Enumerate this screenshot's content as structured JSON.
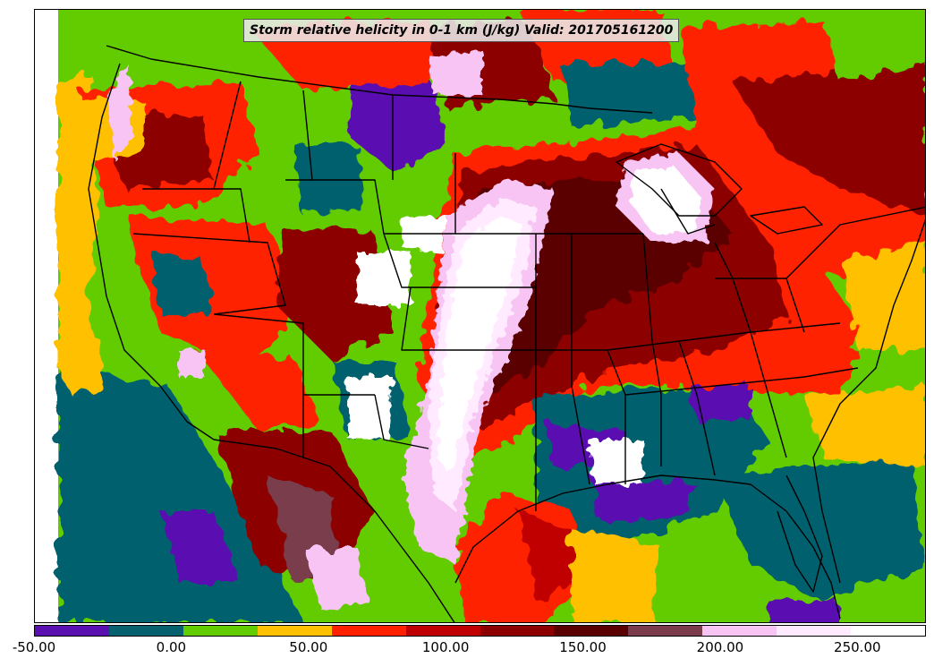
{
  "title": "Storm relative helicity in 0-1 km (J/kg) Valid: 201705161200",
  "colorbar": {
    "min": -50,
    "max": 275,
    "step": 25,
    "colors": [
      "#5a10b0",
      "#06606e",
      "#62cc00",
      "#ffc000",
      "#ff2000",
      "#c00000",
      "#8c0000",
      "#5a0000",
      "#7a3c4c",
      "#f8c4f4",
      "#ffeaff",
      "#ffffff"
    ],
    "tick_labels": [
      {
        "value": -50,
        "label": "-50.00"
      },
      {
        "value": 0,
        "label": "0.00"
      },
      {
        "value": 50,
        "label": "50.00"
      },
      {
        "value": 100,
        "label": "100.00"
      },
      {
        "value": 150,
        "label": "150.00"
      },
      {
        "value": 200,
        "label": "200.00"
      },
      {
        "value": 250,
        "label": "250.00"
      }
    ]
  }
}
